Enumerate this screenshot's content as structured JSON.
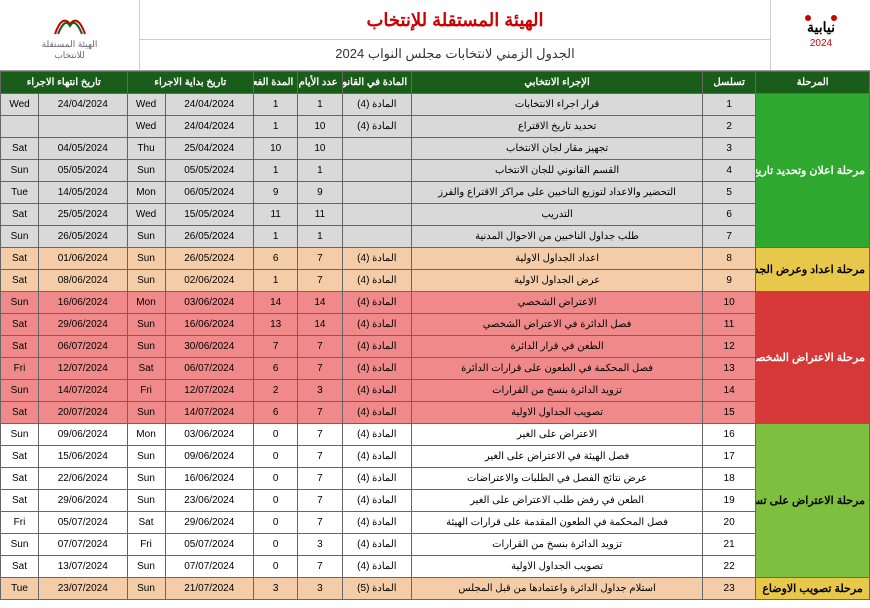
{
  "header": {
    "title1": "الهيئة المستقلة للإنتخاب",
    "title2": "الجدول الزمني  لانتخابات مجلس النواب 2024",
    "logoRightText": "نيابية",
    "logoRightYear": "2024",
    "logoLeftLine1": "الهيئة المستقلة",
    "logoLeftLine2": "للانتخاب"
  },
  "columns": {
    "c1": "المرحلة",
    "c2": "تسلسل",
    "c3": "الإجراء الانتخابي",
    "c4": "المادة في القانون",
    "c5": "عدد الأيام",
    "c6": "المدة الفعلية",
    "c7": "تاريخ بداية الاجراء",
    "c8": "تاريخ انتهاء الاجراء"
  },
  "phases": [
    {
      "label": "مرحلة اعلان وتحديد تاريخ الاقتراع",
      "class": "p-green",
      "span": 7
    },
    {
      "label": "مرحلة اعداد وعرض الجداول الاولية للناخبين",
      "class": "p-yellow",
      "span": 2
    },
    {
      "label": "مرحلة الاعتراض الشخصي على جداول الناخبين الاولية",
      "class": "p-red",
      "span": 6
    },
    {
      "label": "مرحلة الاعتراض على تسجيل الغير",
      "class": "p-green2",
      "span": 7
    },
    {
      "label": "مرحلة تصويب الاوضاع",
      "class": "p-yellow",
      "span": 1
    }
  ],
  "rows": [
    {
      "seq": "1",
      "proc": "قرار اجراء الانتخابات",
      "law": "المادة (4)",
      "days": "1",
      "act": "1",
      "sd": "24/04/2024",
      "sdw": "Wed",
      "ed": "24/04/2024",
      "edw": "Wed",
      "rc": "r-grey"
    },
    {
      "seq": "2",
      "proc": "تحديد تاريخ الاقتراع",
      "law": "المادة (4)",
      "days": "10",
      "act": "1",
      "sd": "24/04/2024",
      "sdw": "Wed",
      "ed": "",
      "edw": "",
      "rc": "r-grey"
    },
    {
      "seq": "3",
      "proc": "تجهيز مقار لجان الانتخاب",
      "law": "",
      "days": "10",
      "act": "10",
      "sd": "25/04/2024",
      "sdw": "Thu",
      "ed": "04/05/2024",
      "edw": "Sat",
      "rc": "r-grey"
    },
    {
      "seq": "4",
      "proc": "القسم القانوني للجان الانتخاب",
      "law": "",
      "days": "1",
      "act": "1",
      "sd": "05/05/2024",
      "sdw": "Sun",
      "ed": "05/05/2024",
      "edw": "Sun",
      "rc": "r-grey"
    },
    {
      "seq": "5",
      "proc": "التحضير والاعداد لتوزيع الناخبين على مراكز الاقتراع والفرز",
      "law": "",
      "days": "9",
      "act": "9",
      "sd": "06/05/2024",
      "sdw": "Mon",
      "ed": "14/05/2024",
      "edw": "Tue",
      "rc": "r-grey"
    },
    {
      "seq": "6",
      "proc": "التدريب",
      "law": "",
      "days": "11",
      "act": "11",
      "sd": "15/05/2024",
      "sdw": "Wed",
      "ed": "25/05/2024",
      "edw": "Sat",
      "rc": "r-grey"
    },
    {
      "seq": "7",
      "proc": "طلب جداول الناخبين من الاحوال المدنية",
      "law": "",
      "days": "1",
      "act": "1",
      "sd": "26/05/2024",
      "sdw": "Sun",
      "ed": "26/05/2024",
      "edw": "Sun",
      "rc": "r-grey"
    },
    {
      "seq": "8",
      "proc": "اعداد الجداول الاولية",
      "law": "المادة (4)",
      "days": "7",
      "act": "6",
      "sd": "26/05/2024",
      "sdw": "Sun",
      "ed": "01/06/2024",
      "edw": "Sat",
      "rc": "r-peach"
    },
    {
      "seq": "9",
      "proc": "عرض الجداول الاولية",
      "law": "المادة (4)",
      "days": "7",
      "act": "1",
      "sd": "02/06/2024",
      "sdw": "Sun",
      "ed": "08/06/2024",
      "edw": "Sat",
      "rc": "r-peach"
    },
    {
      "seq": "10",
      "proc": "الاعتراض الشخصي",
      "law": "المادة (4)",
      "days": "14",
      "act": "14",
      "sd": "03/06/2024",
      "sdw": "Mon",
      "ed": "16/06/2024",
      "edw": "Sun",
      "rc": "r-salmon"
    },
    {
      "seq": "11",
      "proc": "فصل الدائرة في الاعتراض الشخصي",
      "law": "المادة (4)",
      "days": "14",
      "act": "13",
      "sd": "16/06/2024",
      "sdw": "Sun",
      "ed": "29/06/2024",
      "edw": "Sat",
      "rc": "r-salmon"
    },
    {
      "seq": "12",
      "proc": "الطعن في قرار الدائرة",
      "law": "المادة (4)",
      "days": "7",
      "act": "7",
      "sd": "30/06/2024",
      "sdw": "Sun",
      "ed": "06/07/2024",
      "edw": "Sat",
      "rc": "r-salmon"
    },
    {
      "seq": "13",
      "proc": "فصل المحكمة في الطعون على قرارات الدائرة",
      "law": "المادة (4)",
      "days": "7",
      "act": "6",
      "sd": "06/07/2024",
      "sdw": "Sat",
      "ed": "12/07/2024",
      "edw": "Fri",
      "rc": "r-salmon"
    },
    {
      "seq": "14",
      "proc": "تزويد الدائرة بنسخ من القرارات",
      "law": "المادة (4)",
      "days": "3",
      "act": "2",
      "sd": "12/07/2024",
      "sdw": "Fri",
      "ed": "14/07/2024",
      "edw": "Sun",
      "rc": "r-salmon"
    },
    {
      "seq": "15",
      "proc": "تصويب الجداول الاولية",
      "law": "المادة (4)",
      "days": "7",
      "act": "6",
      "sd": "14/07/2024",
      "sdw": "Sun",
      "ed": "20/07/2024",
      "edw": "Sat",
      "rc": "r-salmon"
    },
    {
      "seq": "16",
      "proc": "الاعتراض على الغير",
      "law": "المادة (4)",
      "days": "7",
      "act": "0",
      "sd": "03/06/2024",
      "sdw": "Mon",
      "ed": "09/06/2024",
      "edw": "Sun",
      "rc": "r-white"
    },
    {
      "seq": "17",
      "proc": "فصل الهيئة في الاعتراض على الغير",
      "law": "المادة (4)",
      "days": "7",
      "act": "0",
      "sd": "09/06/2024",
      "sdw": "Sun",
      "ed": "15/06/2024",
      "edw": "Sat",
      "rc": "r-white"
    },
    {
      "seq": "18",
      "proc": "عرض نتائج الفصل في الطلبات والاعتراضات",
      "law": "المادة (4)",
      "days": "7",
      "act": "0",
      "sd": "16/06/2024",
      "sdw": "Sun",
      "ed": "22/06/2024",
      "edw": "Sat",
      "rc": "r-white"
    },
    {
      "seq": "19",
      "proc": "الطعن في رفض طلب الاعتراض على الغير",
      "law": "المادة (4)",
      "days": "7",
      "act": "0",
      "sd": "23/06/2024",
      "sdw": "Sun",
      "ed": "29/06/2024",
      "edw": "Sat",
      "rc": "r-white"
    },
    {
      "seq": "20",
      "proc": "فصل المحكمة في الطعون المقدمة على قرارات الهيئة",
      "law": "المادة (4)",
      "days": "7",
      "act": "0",
      "sd": "29/06/2024",
      "sdw": "Sat",
      "ed": "05/07/2024",
      "edw": "Fri",
      "rc": "r-white"
    },
    {
      "seq": "21",
      "proc": "تزويد الدائرة بنسخ من القرارات",
      "law": "المادة (4)",
      "days": "3",
      "act": "0",
      "sd": "05/07/2024",
      "sdw": "Fri",
      "ed": "07/07/2024",
      "edw": "Sun",
      "rc": "r-white"
    },
    {
      "seq": "22",
      "proc": "تصويب الجداول الاولية",
      "law": "المادة (4)",
      "days": "7",
      "act": "0",
      "sd": "07/07/2024",
      "sdw": "Sun",
      "ed": "13/07/2024",
      "edw": "Sat",
      "rc": "r-white"
    },
    {
      "seq": "23",
      "proc": "استلام جداول الدائرة واعتمادها من قبل المجلس",
      "law": "المادة (5)",
      "days": "3",
      "act": "3",
      "sd": "21/07/2024",
      "sdw": "Sun",
      "ed": "23/07/2024",
      "edw": "Tue",
      "rc": "r-peach"
    }
  ]
}
